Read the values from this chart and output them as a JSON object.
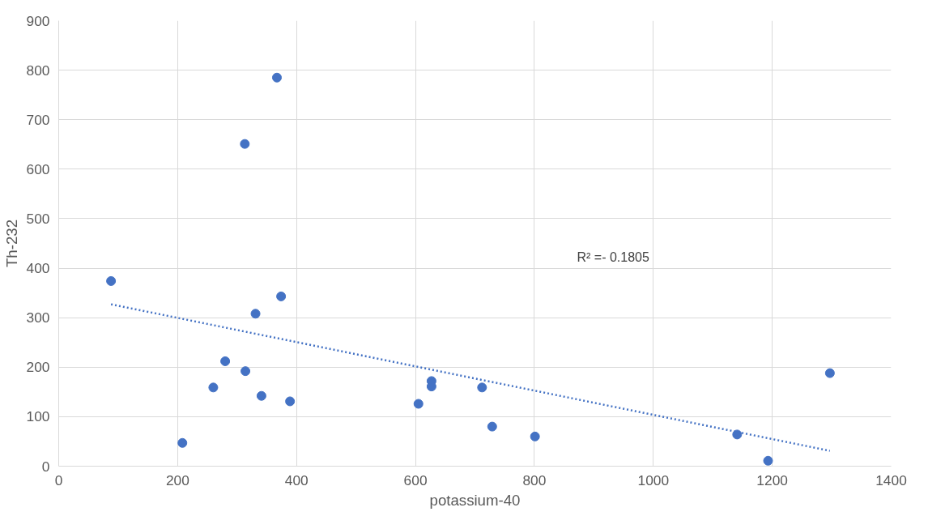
{
  "chart_data": {
    "type": "scatter",
    "xlabel": "potassium-40",
    "ylabel": "Th-232",
    "xlim": [
      0,
      1400
    ],
    "xticks": [
      0,
      200,
      400,
      600,
      800,
      1000,
      1200,
      1400
    ],
    "ylim": [
      0,
      900
    ],
    "yticks": [
      0,
      100,
      200,
      300,
      400,
      500,
      600,
      700,
      800,
      900
    ],
    "grid": true,
    "series": [
      {
        "marker": "circle",
        "color": "#4472c4",
        "x": [
          88,
          208,
          260,
          280,
          314,
          313,
          331,
          341,
          367,
          374,
          389,
          605,
          627,
          627,
          712,
          729,
          801,
          1141,
          1193,
          1297
        ],
        "values": [
          374,
          47,
          159,
          212,
          192,
          651,
          308,
          142,
          785,
          343,
          131,
          126,
          172,
          161,
          159,
          80,
          60,
          64,
          11,
          188
        ]
      },
      {
        "type": "line",
        "color": "#4472c4",
        "line_style": "dotted",
        "x": [
          88,
          1297
        ],
        "values": [
          327,
          31
        ]
      }
    ],
    "annotations": [
      "R² =- 0.1805"
    ]
  }
}
